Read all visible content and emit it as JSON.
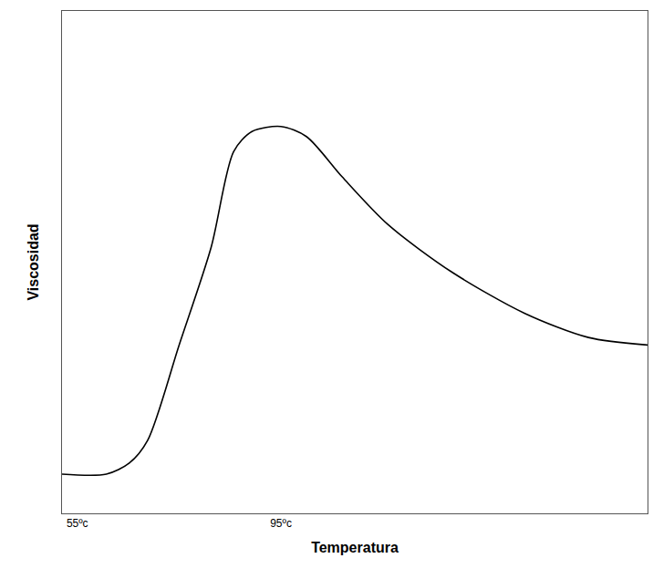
{
  "chart_data": {
    "type": "line",
    "x_label": "Temperatura",
    "y_label": "Viscosidad",
    "x": [
      52,
      60.7,
      65.2,
      68.8,
      75,
      81.3,
      85.7,
      89.3,
      95,
      100,
      107,
      116,
      128.6,
      142.9,
      155.4,
      167
    ],
    "values": [
      7.8,
      7.8,
      10,
      14.5,
      33.5,
      53,
      72,
      76,
      77,
      75,
      67,
      57.5,
      48,
      39.8,
      35,
      33.5
    ],
    "color": "#000000",
    "line_style": "solid",
    "xlim": [
      52,
      167
    ],
    "xticks": [
      {
        "value": 55,
        "label": "55ºc"
      },
      {
        "value": 95,
        "label": "95ºc"
      }
    ],
    "ylim": [
      0,
      100
    ],
    "yticks": [],
    "tick_labels": "x",
    "grid": false
  }
}
